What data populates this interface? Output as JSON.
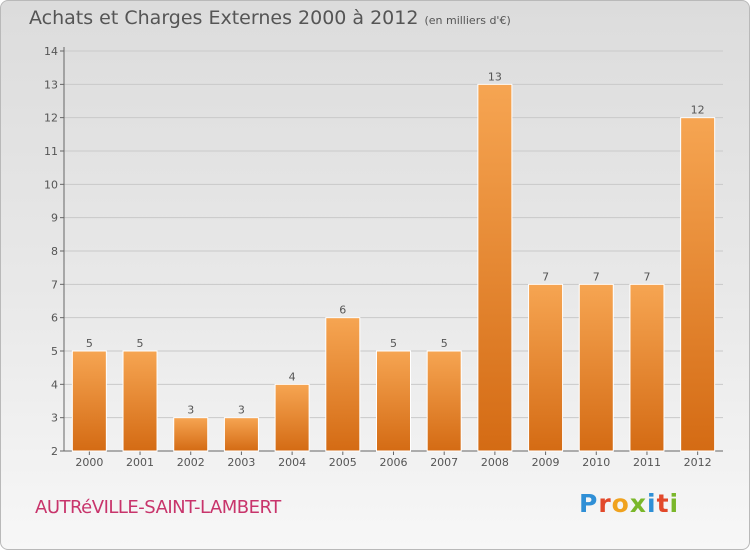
{
  "chart_data": {
    "type": "bar",
    "title": "Achats et Charges Externes 2000 à 2012",
    "subtitle": "(en milliers d'€)",
    "categories": [
      "2000",
      "2001",
      "2002",
      "2003",
      "2004",
      "2005",
      "2006",
      "2007",
      "2008",
      "2009",
      "2010",
      "2011",
      "2012"
    ],
    "values": [
      5,
      5,
      3,
      3,
      4,
      6,
      5,
      5,
      13,
      7,
      7,
      7,
      12
    ],
    "ylim": [
      2,
      14
    ],
    "yticks": [
      2,
      3,
      4,
      5,
      6,
      7,
      8,
      9,
      10,
      11,
      12,
      13,
      14
    ],
    "grid": true,
    "colors": {
      "bar_top": "#f6a552",
      "bar_bottom": "#d46b14",
      "grid": "#c9c9c9"
    }
  },
  "footer": {
    "location": "AUTRéVILLE-SAINT-LAMBERT",
    "logo_text": "Proxiti",
    "logo_colors": [
      "#2f8fd6",
      "#e2482a",
      "#f0a21e",
      "#7ab72a",
      "#2f8fd6",
      "#e2482a",
      "#7ab72a"
    ]
  }
}
